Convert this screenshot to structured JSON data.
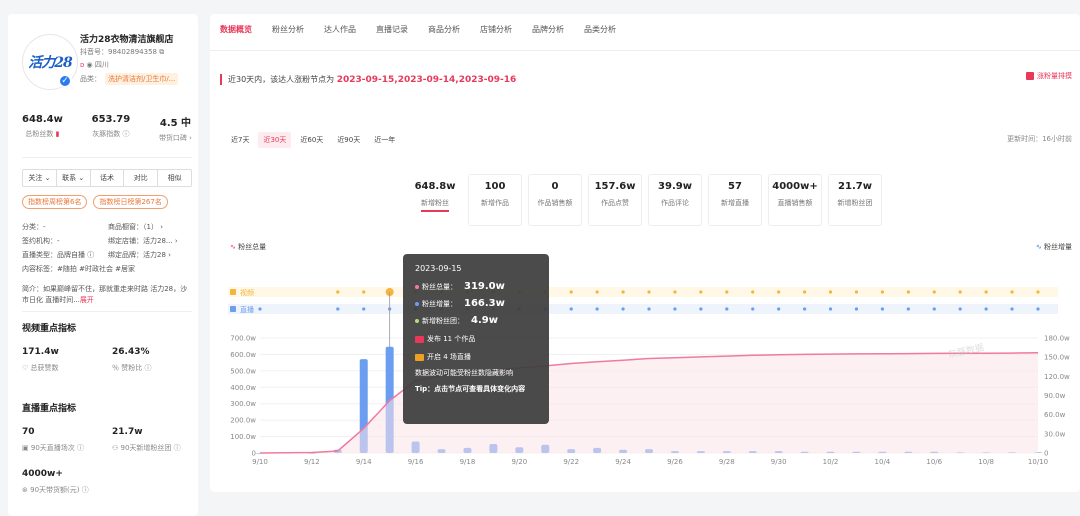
{
  "shop": {
    "logo_text": "活力28",
    "name": "活力28衣物清洁旗舰店",
    "douyin_id": "抖音号：98402894358",
    "region": "四川",
    "category_label": "品类：",
    "category_value": "洗护清洁剂/卫生巾/..."
  },
  "top_stats": [
    {
      "value": "648.4w",
      "label": "总粉丝数"
    },
    {
      "value": "653.79",
      "label": "灰豚指数"
    },
    {
      "value": "4.5 中",
      "label": "带货口碑"
    }
  ],
  "actions": [
    "关注",
    "联系",
    "话术",
    "对比",
    "相似"
  ],
  "rank_pills": [
    "指数榜周榜第6名",
    "指数榜日榜第267名"
  ],
  "info_rows": [
    [
      "分类：-",
      "商品橱窗：（1）"
    ],
    [
      "签约机构：-",
      "绑定店铺：活力28..."
    ],
    [
      "直播类型：品牌自播",
      "绑定品牌：活力28"
    ],
    [
      "内容标签：#随拍 #时政社会 #居家",
      ""
    ]
  ],
  "intro": {
    "text": "简介：如果巅峰留不住，那就重走来时路 活力28，沙市日化 直播时间...",
    "more": "展开"
  },
  "video_section": {
    "title": "视频重点指标",
    "items": [
      {
        "value": "171.4w",
        "label": "总获赞数"
      },
      {
        "value": "26.43%",
        "label": "赞粉比"
      }
    ]
  },
  "live_section": {
    "title": "直播重点指标",
    "items": [
      {
        "value": "70",
        "label": "90天直播场次"
      },
      {
        "value": "21.7w",
        "label": "90天新增粉丝团"
      },
      {
        "value": "4000w+",
        "label": "90天带货额(元)"
      }
    ]
  },
  "tabs": [
    "数据概览",
    "粉丝分析",
    "达人作品",
    "直播记录",
    "商品分析",
    "店铺分析",
    "品牌分析",
    "品类分析"
  ],
  "alert": {
    "prefix": "近30天内，该达人涨粉节点为",
    "dates": "2023-09-15,2023-09-14,2023-09-16"
  },
  "export_label": "涨粉量排摸",
  "ranges": [
    "近7天",
    "近30天",
    "近60天",
    "近90天",
    "近一年"
  ],
  "updated": "更新时间：16小时前",
  "kpis": [
    {
      "value": "648.8w",
      "label": "新增粉丝"
    },
    {
      "value": "100",
      "label": "新增作品"
    },
    {
      "value": "0",
      "label": "作品销售额"
    },
    {
      "value": "157.6w",
      "label": "作品点赞"
    },
    {
      "value": "39.9w",
      "label": "作品评论"
    },
    {
      "value": "57",
      "label": "新增直播"
    },
    {
      "value": "4000w+",
      "label": "直播销售额"
    },
    {
      "value": "21.7w",
      "label": "新增粉丝团"
    }
  ],
  "legend_left": "粉丝总量",
  "legend_right": "粉丝增量",
  "tooltip": {
    "date": "2023-09-15",
    "total_label": "粉丝总量：",
    "total_value": "319.0w",
    "inc_label": "粉丝增量：",
    "inc_value": "166.3w",
    "club_label": "新增粉丝团：",
    "club_value": "4.9w",
    "works": "发布 11 个作品",
    "lives": "开启 4 场直播",
    "note": "数据波动可能受粉丝数隐藏影响",
    "tip": "Tip：点击节点可查看具体变化内容"
  },
  "watermark": "灰豚数据",
  "chart_data": {
    "type": "bar",
    "categories": [
      "9/10",
      "9/11",
      "9/12",
      "9/13",
      "9/14",
      "9/15",
      "9/16",
      "9/17",
      "9/18",
      "9/19",
      "9/20",
      "9/21",
      "9/22",
      "9/23",
      "9/24",
      "9/25",
      "9/26",
      "9/27",
      "9/28",
      "9/29",
      "9/30",
      "10/1",
      "10/2",
      "10/3",
      "10/4",
      "10/5",
      "10/6",
      "10/7",
      "10/8",
      "10/9",
      "10/10"
    ],
    "x_tick_labels": [
      "9/10",
      "9/12",
      "9/14",
      "9/16",
      "9/18",
      "9/20",
      "9/22",
      "9/24",
      "9/26",
      "9/28",
      "9/30",
      "10/2",
      "10/4",
      "10/6",
      "10/8",
      "10/10"
    ],
    "series": [
      {
        "name": "粉丝增量",
        "axis": "right",
        "color": "#6b9ef0",
        "values": [
          0,
          0,
          0,
          5,
          147,
          166.3,
          18,
          6,
          8,
          14,
          9,
          13,
          6,
          8,
          5,
          6,
          3,
          3,
          3,
          3,
          3,
          2,
          2,
          2,
          2,
          2,
          2,
          1,
          1,
          1,
          1
        ]
      },
      {
        "name": "粉丝总量",
        "axis": "left",
        "color": "#f07aa0",
        "values": [
          0,
          1,
          3,
          12,
          150,
          319,
          440,
          470,
          490,
          505,
          518,
          530,
          545,
          555,
          565,
          575,
          580,
          585,
          590,
          595,
          598,
          600,
          602,
          603,
          604,
          605,
          606,
          607,
          607,
          608,
          610
        ]
      }
    ],
    "video_marks": [
      0,
      0,
      0,
      1,
      1,
      1,
      1,
      1,
      1,
      1,
      1,
      1,
      1,
      1,
      1,
      1,
      1,
      1,
      1,
      1,
      1,
      1,
      1,
      1,
      1,
      1,
      1,
      1,
      1,
      1,
      1
    ],
    "live_marks": [
      1,
      0,
      0,
      1,
      1,
      1,
      1,
      1,
      1,
      1,
      1,
      1,
      1,
      1,
      1,
      1,
      1,
      1,
      1,
      1,
      1,
      1,
      1,
      1,
      1,
      1,
      1,
      1,
      1,
      1,
      1
    ],
    "row_labels": [
      "视频",
      "直播"
    ],
    "y_left_ticks": [
      "0",
      "100.0w",
      "200.0w",
      "300.0w",
      "400.0w",
      "500.0w",
      "600.0w",
      "700.0w"
    ],
    "y_right_ticks": [
      "0",
      "30.0w",
      "60.0w",
      "90.0w",
      "120.0w",
      "150.0w",
      "180.0w"
    ],
    "ylim_left": [
      0,
      700
    ],
    "ylim_right": [
      0,
      180
    ],
    "highlight_index": 5
  }
}
